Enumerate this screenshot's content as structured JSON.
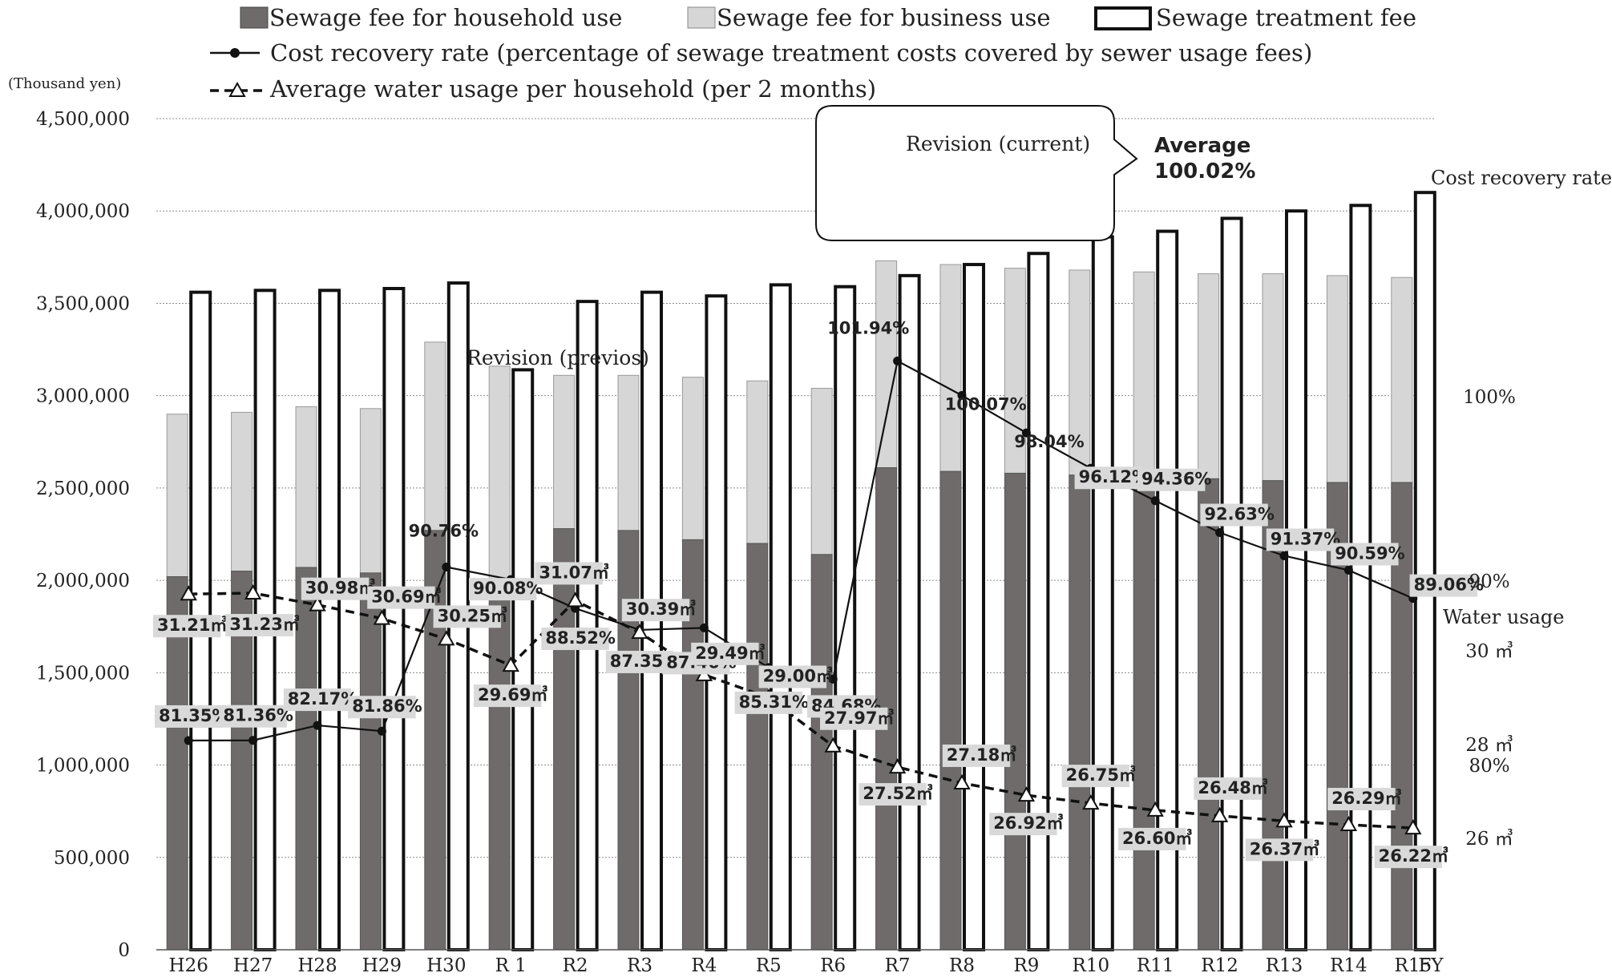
{
  "chart_data": {
    "type": "bar",
    "categories": [
      "H26",
      "H27",
      "H28",
      "H29",
      "H30",
      "R 1",
      "R2",
      "R3",
      "R4",
      "R5",
      "R6",
      "R7",
      "R8",
      "R9",
      "R10",
      "R11",
      "R12",
      "R13",
      "R14",
      "R15"
    ],
    "x_unit_label": "FY",
    "y_unit_label": "(Thousand yen)",
    "ylim": [
      0,
      4500000
    ],
    "y_ticks": [
      "0",
      "500,000",
      "1,000,000",
      "1,500,000",
      "2,000,000",
      "2,500,000",
      "3,000,000",
      "3,500,000",
      "4,000,000",
      "4,500,000"
    ],
    "grid": true,
    "legend_position": "top",
    "series": [
      {
        "name": "Sewage fee for household use",
        "kind": "stacked-bar",
        "color": "#6f6b6b",
        "values": [
          2020000,
          2050000,
          2070000,
          2040000,
          2270000,
          1960000,
          2280000,
          2270000,
          2220000,
          2200000,
          2140000,
          2610000,
          2590000,
          2580000,
          2570000,
          2560000,
          2550000,
          2540000,
          2530000,
          2530000
        ]
      },
      {
        "name": "Sewage fee for business use",
        "kind": "stacked-bar",
        "color": "#d6d6d6",
        "values": [
          880000,
          860000,
          870000,
          890000,
          1020000,
          1200000,
          830000,
          840000,
          880000,
          880000,
          900000,
          1120000,
          1120000,
          1110000,
          1110000,
          1110000,
          1110000,
          1120000,
          1120000,
          1110000
        ]
      },
      {
        "name": "Sewage treatment fee",
        "kind": "bar",
        "color": "#ffffff",
        "values": [
          3560000,
          3570000,
          3570000,
          3580000,
          3610000,
          3140000,
          3510000,
          3560000,
          3540000,
          3600000,
          3590000,
          3650000,
          3710000,
          3770000,
          3860000,
          3890000,
          3960000,
          4000000,
          4030000,
          4100000
        ]
      },
      {
        "name": "Cost recovery rate (percentage of sewage treatment costs covered by sewer usage fees)",
        "kind": "line-right",
        "color": "#111111",
        "values": [
          81.35,
          81.36,
          82.17,
          81.86,
          90.76,
          90.08,
          88.52,
          87.35,
          87.46,
          85.31,
          84.68,
          101.94,
          100.07,
          98.04,
          96.12,
          94.36,
          92.63,
          91.37,
          90.59,
          89.06
        ],
        "labels": [
          "81.35%",
          "81.36%",
          "82.17%",
          "81.86%",
          "90.76%",
          "90.08%",
          "88.52%",
          "87.35%",
          "87.46%",
          "85.31%",
          "84.68%",
          "101.94%",
          "100.07%",
          "98.04%",
          "96.12%",
          "94.36%",
          "92.63%",
          "91.37%",
          "90.59%",
          "89.06%"
        ]
      },
      {
        "name": "Average water usage per household (per 2 months)",
        "kind": "line-water",
        "color": "#111111",
        "values": [
          31.21,
          31.23,
          30.98,
          30.69,
          30.25,
          29.69,
          31.07,
          30.39,
          29.49,
          29.0,
          27.97,
          27.52,
          27.18,
          26.92,
          26.75,
          26.6,
          26.48,
          26.37,
          26.29,
          26.22
        ],
        "labels": [
          "31.21㎥",
          "31.23㎥",
          "30.98㎥",
          "30.69㎥",
          "30.25㎥",
          "29.69㎥",
          "31.07㎥",
          "30.39㎥",
          "29.49㎥",
          "29.00㎥",
          "27.97㎥",
          "27.52㎥",
          "27.18㎥",
          "26.92㎥",
          "26.75㎥",
          "26.60㎥",
          "26.48㎥",
          "26.37㎥",
          "26.29㎥",
          "26.22㎥"
        ]
      }
    ],
    "right_axis_rate": {
      "title": "Cost recovery rate",
      "ticks": [
        "100%",
        "90%",
        "80%"
      ]
    },
    "right_axis_water": {
      "title": "Water usage",
      "ticks": [
        "30 ㎥",
        "28 ㎥",
        "26 ㎥"
      ]
    },
    "annotations": {
      "revision_previous": "Revision (previos)",
      "revision_current": "Revision (current)",
      "average_label": "Average",
      "average_value": "100.02%"
    }
  }
}
